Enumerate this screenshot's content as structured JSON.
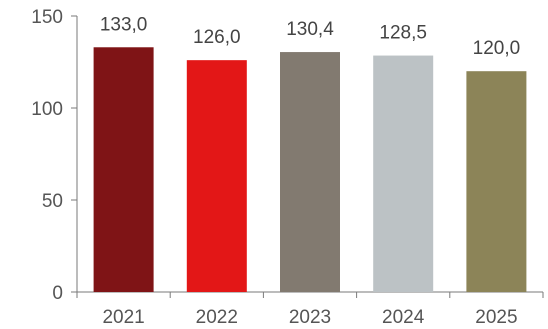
{
  "chart_data": {
    "type": "bar",
    "title": "",
    "xlabel": "",
    "ylabel": "",
    "categories": [
      "2021",
      "2022",
      "2023",
      "2024",
      "2025"
    ],
    "values": [
      133.0,
      126.0,
      130.4,
      128.5,
      120.0
    ],
    "value_labels": [
      "133,0",
      "126,0",
      "130,4",
      "128,5",
      "120,0"
    ],
    "colors": [
      "#7f1416",
      "#e31717",
      "#827a70",
      "#bcc2c5",
      "#8c8458"
    ],
    "ylim": [
      0,
      150
    ],
    "yticks": [
      0,
      50,
      100,
      150
    ],
    "grid": false,
    "legend": "none"
  }
}
